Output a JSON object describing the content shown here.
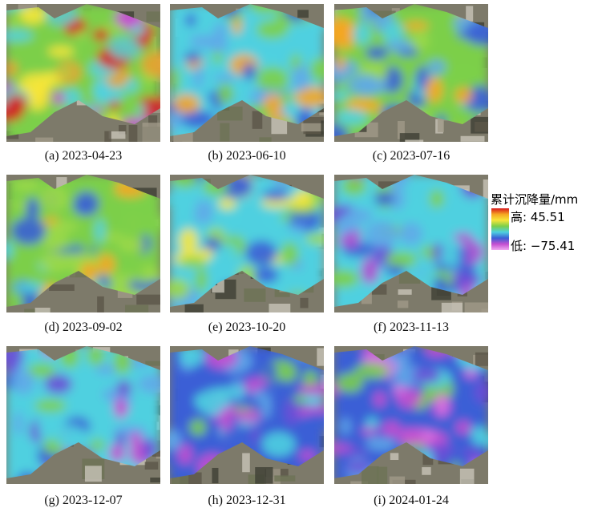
{
  "panels": [
    {
      "caption": "(a) 2023-04-23"
    },
    {
      "caption": "(b) 2023-06-10"
    },
    {
      "caption": "(c) 2023-07-16"
    },
    {
      "caption": "(d) 2023-09-02"
    },
    {
      "caption": "(e) 2023-10-20"
    },
    {
      "caption": "(f) 2023-11-13"
    },
    {
      "caption": "(g) 2023-12-07"
    },
    {
      "caption": "(h) 2023-12-31"
    },
    {
      "caption": "(i) 2024-01-24"
    }
  ],
  "legend": {
    "title": "累计沉降量/mm",
    "high": "高: 45.51",
    "low": "低: −75.41"
  }
}
